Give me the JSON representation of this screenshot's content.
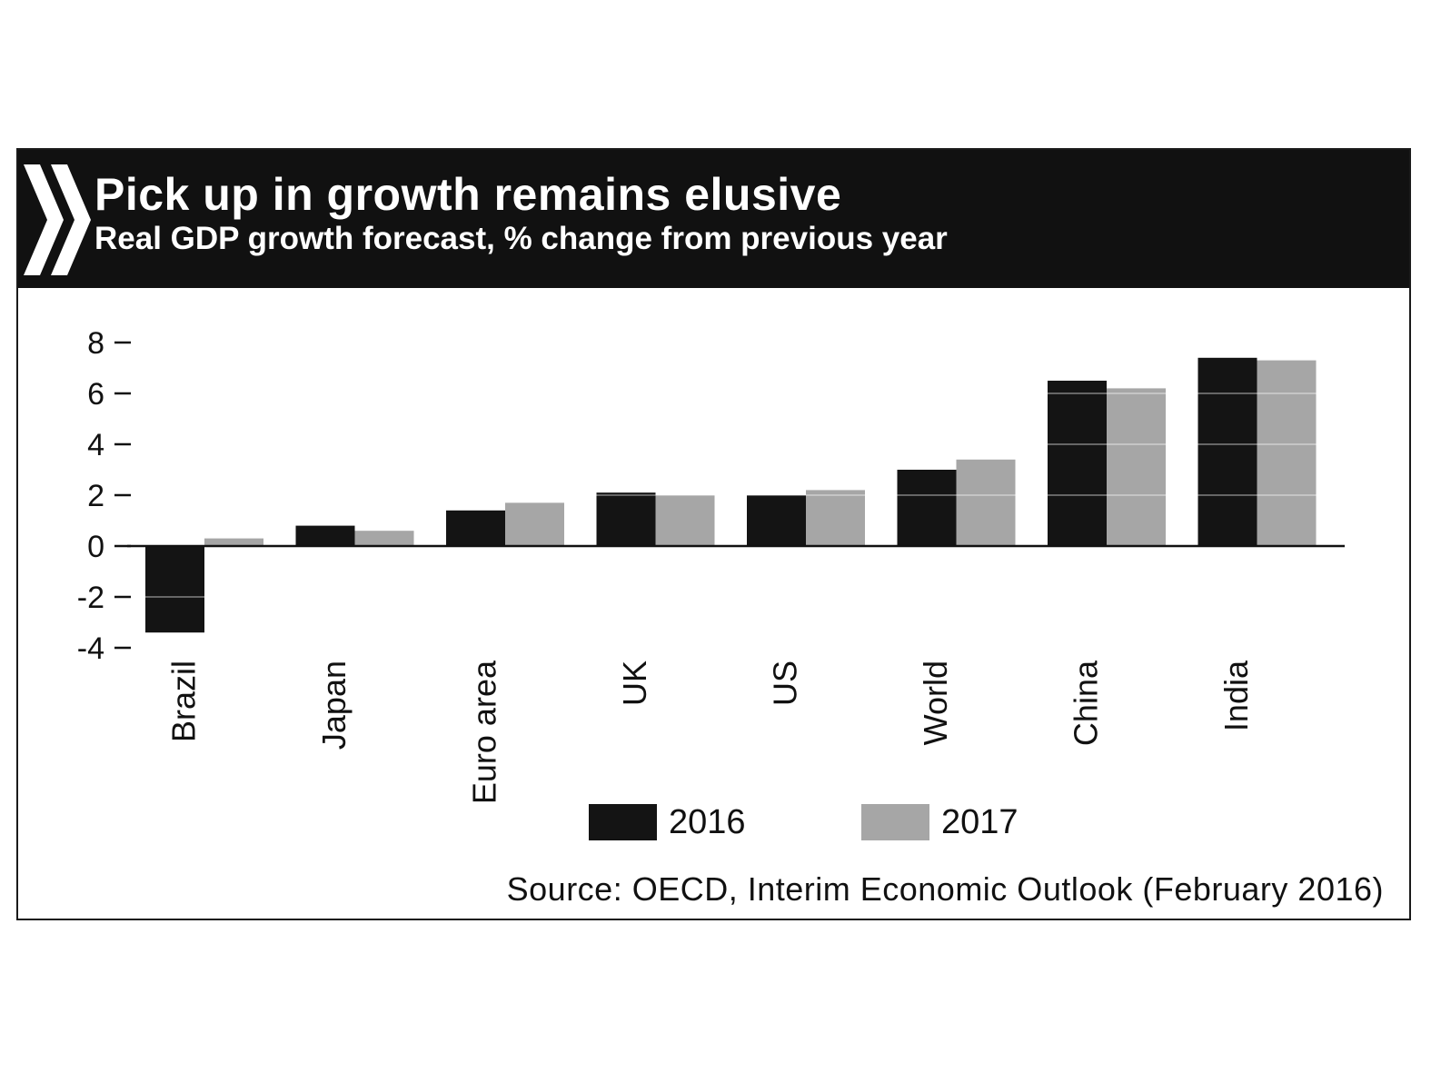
{
  "header": {
    "title": "Pick up in growth remains elusive",
    "subtitle": "Real GDP growth forecast, % change from previous year"
  },
  "source": "Source: OECD, Interim Economic Outlook (February 2016)",
  "colors": {
    "banner": "#111111",
    "series_2016": "#141414",
    "series_2017": "#a6a6a6"
  },
  "icons": {
    "logo": "double-chevron-icon"
  },
  "chart_data": {
    "type": "bar",
    "categories": [
      "Brazil",
      "Japan",
      "Euro area",
      "UK",
      "US",
      "World",
      "China",
      "India"
    ],
    "series": [
      {
        "name": "2016",
        "values": [
          -3.4,
          0.8,
          1.4,
          2.1,
          2.0,
          3.0,
          6.5,
          7.4
        ]
      },
      {
        "name": "2017",
        "values": [
          0.3,
          0.6,
          1.7,
          2.0,
          2.2,
          3.4,
          6.2,
          7.3
        ]
      }
    ],
    "yticks": [
      "8",
      "6",
      "4",
      "2",
      "0",
      "-2",
      "-4"
    ],
    "ylim": [
      -4,
      8
    ],
    "grid": true,
    "legend": "bottom"
  }
}
